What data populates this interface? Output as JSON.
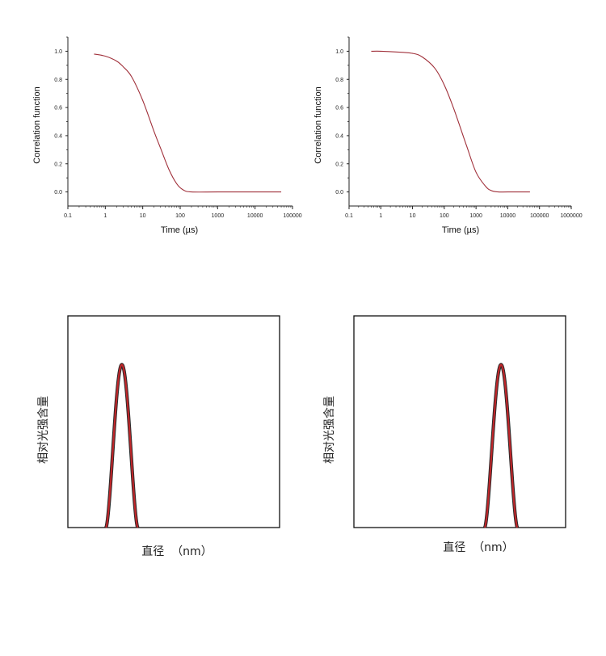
{
  "chart_data": [
    {
      "type": "line",
      "xscale": "log",
      "xlim": [
        0.1,
        100000
      ],
      "ylim": [
        -0.1,
        1.1
      ],
      "xticks": [
        0.1,
        1,
        10,
        100,
        1000,
        10000,
        100000
      ],
      "xtick_labels": [
        "0.1",
        "1",
        "10",
        "100",
        "1000",
        "10000",
        "100000"
      ],
      "yticks": [
        0,
        0.2,
        0.4,
        0.6,
        0.8,
        1.0
      ],
      "ytick_labels": [
        "0.0",
        "0.2",
        "0.4",
        "0.6",
        "0.8",
        "1.0"
      ],
      "xlabel": "Time (µs)",
      "ylabel": "Correlation function",
      "color": "#a0303a",
      "series": [
        {
          "x": [
            0.5,
            1,
            2,
            3,
            5,
            10,
            20,
            30,
            50,
            80,
            120,
            200,
            1000,
            10000,
            50000
          ],
          "y": [
            0.98,
            0.965,
            0.93,
            0.89,
            0.82,
            0.65,
            0.43,
            0.31,
            0.16,
            0.06,
            0.015,
            0.0,
            0.0,
            0.0,
            0.0
          ]
        }
      ]
    },
    {
      "type": "line",
      "xscale": "log",
      "xlim": [
        0.1,
        1000000
      ],
      "ylim": [
        -0.1,
        1.1
      ],
      "xticks": [
        0.1,
        1,
        10,
        100,
        1000,
        10000,
        100000,
        1000000
      ],
      "xtick_labels": [
        "0.1",
        "1",
        "10",
        "100",
        "1000",
        "10000",
        "100000",
        "1000000"
      ],
      "yticks": [
        0,
        0.2,
        0.4,
        0.6,
        0.8,
        1.0
      ],
      "ytick_labels": [
        "0.0",
        "0.2",
        "0.4",
        "0.6",
        "0.8",
        "1.0"
      ],
      "xlabel": "Time (µs)",
      "ylabel": "Correlation function",
      "color": "#a0303a",
      "series": [
        {
          "x": [
            0.5,
            1,
            3,
            10,
            20,
            50,
            100,
            200,
            500,
            1000,
            2000,
            3000,
            5000,
            10000,
            50000
          ],
          "y": [
            1.0,
            1.0,
            0.995,
            0.985,
            0.96,
            0.88,
            0.76,
            0.59,
            0.33,
            0.14,
            0.04,
            0.01,
            0.0,
            0.0,
            0.0
          ]
        }
      ]
    },
    {
      "type": "area",
      "xlabel": "直径  （nm）",
      "ylabel": "相对光强含量",
      "xlim": [
        0,
        1
      ],
      "ylim": [
        0,
        1
      ],
      "color": "#c0262a",
      "peak": {
        "center": 0.255,
        "half_width": 0.075,
        "height": 0.77
      }
    },
    {
      "type": "area",
      "xlabel": "直径  （nm）",
      "ylabel": "相对光强含量",
      "xlim": [
        0,
        1
      ],
      "ylim": [
        0,
        1
      ],
      "color": "#c0262a",
      "peak": {
        "center": 0.695,
        "half_width": 0.077,
        "height": 0.77
      }
    }
  ]
}
